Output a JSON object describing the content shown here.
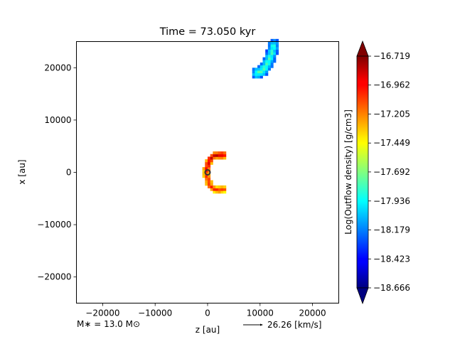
{
  "chart_data": {
    "type": "heatmap",
    "title": "Time = 73.050 kyr",
    "xlabel": "z [au]",
    "ylabel": "x [au]",
    "xlim": [
      -25000,
      25000
    ],
    "ylim": [
      -25000,
      25000
    ],
    "xticks": [
      -20000,
      -10000,
      0,
      10000,
      20000
    ],
    "xtick_labels": [
      "−20000",
      "−10000",
      "0",
      "10000",
      "20000"
    ],
    "yticks": [
      -20000,
      -10000,
      0,
      10000,
      20000
    ],
    "ytick_labels": [
      "−20000",
      "−10000",
      "0",
      "10000",
      "20000"
    ],
    "grid": false,
    "colorbar": {
      "label": "Log(Outflow density) [g/cm3]",
      "colormap": "jet",
      "range": [
        -18.666,
        -16.719
      ],
      "ticks": [
        -16.719,
        -16.962,
        -17.205,
        -17.449,
        -17.692,
        -17.936,
        -18.179,
        -18.423,
        -18.666
      ],
      "tick_labels": [
        "−16.719",
        "−16.962",
        "−17.205",
        "−17.449",
        "−17.692",
        "−17.936",
        "−18.179",
        "−18.423",
        "−18.666"
      ],
      "extend": "both"
    },
    "regions": [
      {
        "name": "north-outflow-blob",
        "z_range": [
          8500,
          13000
        ],
        "x_range": [
          18500,
          24500
        ],
        "value_range": [
          -18.5,
          -17.7
        ]
      },
      {
        "name": "upper-cavity-arc",
        "z_range": [
          -500,
          3300
        ],
        "x_range": [
          0,
          4000
        ],
        "value_range": [
          -17.5,
          -16.8
        ]
      },
      {
        "name": "lower-cavity-arc",
        "z_range": [
          -500,
          3500
        ],
        "x_range": [
          -3600,
          0
        ],
        "value_range": [
          -17.6,
          -17.0
        ]
      }
    ],
    "star_marker": {
      "z": 0,
      "x": 0
    },
    "annotations": {
      "stellar_mass": "M$_*$ = 13.0 M$_\\odot$",
      "stellar_mass_display": "M∗ = 13.0 M⊙",
      "velocity_key": "26.26 [km/s]"
    }
  }
}
